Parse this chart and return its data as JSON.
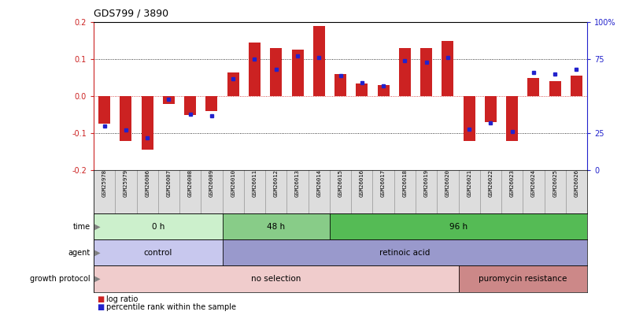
{
  "title": "GDS799 / 3890",
  "samples": [
    "GSM25978",
    "GSM25979",
    "GSM26006",
    "GSM26007",
    "GSM26008",
    "GSM26009",
    "GSM26010",
    "GSM26011",
    "GSM26012",
    "GSM26013",
    "GSM26014",
    "GSM26015",
    "GSM26016",
    "GSM26017",
    "GSM26018",
    "GSM26019",
    "GSM26020",
    "GSM26021",
    "GSM26022",
    "GSM26023",
    "GSM26024",
    "GSM26025",
    "GSM26026"
  ],
  "log_ratio": [
    -0.075,
    -0.12,
    -0.145,
    -0.02,
    -0.05,
    -0.04,
    0.065,
    0.145,
    0.13,
    0.125,
    0.19,
    0.06,
    0.035,
    0.03,
    0.13,
    0.13,
    0.148,
    -0.12,
    -0.07,
    -0.12,
    0.05,
    0.04,
    0.055
  ],
  "percentile_rank": [
    30,
    27,
    22,
    48,
    38,
    37,
    62,
    75,
    68,
    77,
    76,
    64,
    59,
    57,
    74,
    73,
    76,
    28,
    32,
    26,
    66,
    65,
    68
  ],
  "time_groups": [
    {
      "label": "0 h",
      "start": 0,
      "end": 6,
      "color": "#ccf0cc"
    },
    {
      "label": "48 h",
      "start": 6,
      "end": 11,
      "color": "#88cc88"
    },
    {
      "label": "96 h",
      "start": 11,
      "end": 23,
      "color": "#55bb55"
    }
  ],
  "agent_groups": [
    {
      "label": "control",
      "start": 0,
      "end": 6,
      "color": "#c8c8ee"
    },
    {
      "label": "retinoic acid",
      "start": 6,
      "end": 23,
      "color": "#9999cc"
    }
  ],
  "growth_groups": [
    {
      "label": "no selection",
      "start": 0,
      "end": 17,
      "color": "#f0cccc"
    },
    {
      "label": "puromycin resistance",
      "start": 17,
      "end": 23,
      "color": "#cc8888"
    }
  ],
  "ylim": [
    -0.2,
    0.2
  ],
  "bar_color": "#cc2222",
  "dot_color": "#2222cc",
  "background_color": "#ffffff",
  "row_labels": [
    "time",
    "agent",
    "growth protocol"
  ],
  "legend_items": [
    {
      "color": "#cc2222",
      "label": "log ratio"
    },
    {
      "color": "#2222cc",
      "label": "percentile rank within the sample"
    }
  ]
}
